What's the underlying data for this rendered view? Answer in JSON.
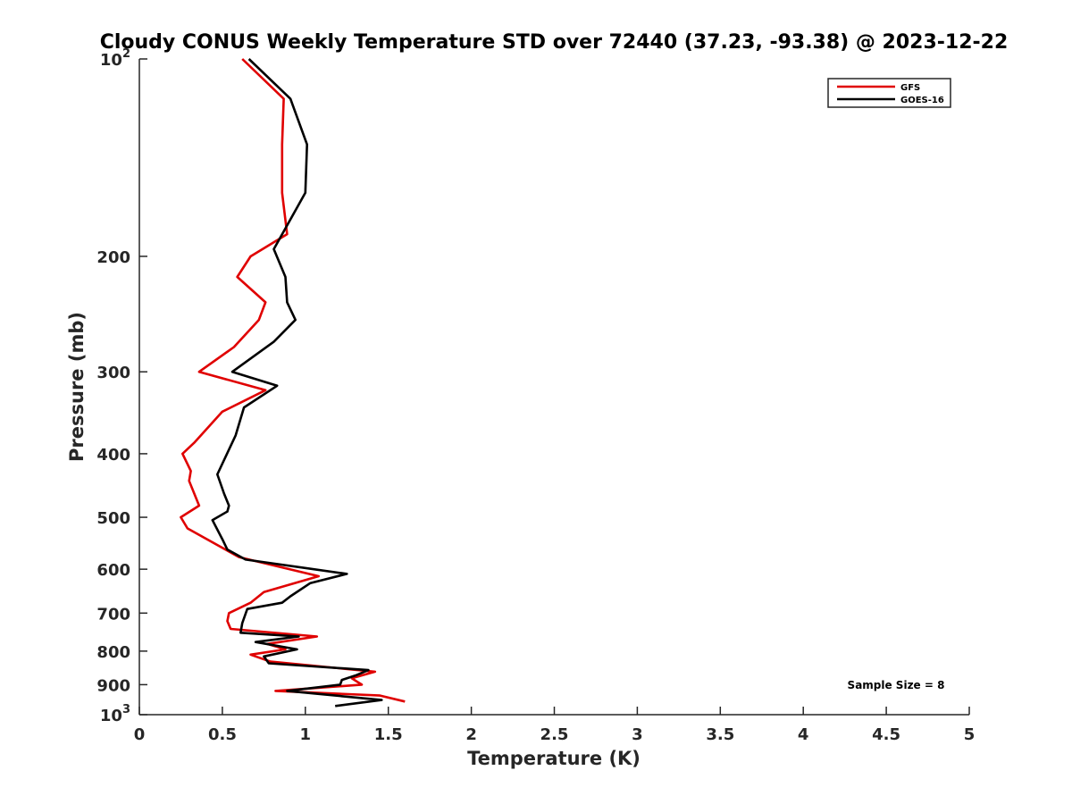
{
  "chart_data": {
    "type": "line",
    "title": "Cloudy CONUS Weekly Temperature STD over 72440 (37.23, -93.38) @ 2023-12-22",
    "xlabel": "Temperature (K)",
    "ylabel": "Pressure (mb)",
    "xlim": [
      0,
      5
    ],
    "ylim": [
      100,
      1000
    ],
    "y_scale": "log",
    "y_reversed": true,
    "grid": false,
    "legend_position": "top-right",
    "x_ticks": [
      "0",
      "0.5",
      "1",
      "1.5",
      "2",
      "2.5",
      "3",
      "3.5",
      "4",
      "4.5",
      "5"
    ],
    "y_ticks": [
      {
        "value": 100,
        "base": "10",
        "exp": "2"
      },
      {
        "value": 200,
        "label": "200"
      },
      {
        "value": 300,
        "label": "300"
      },
      {
        "value": 400,
        "label": "400"
      },
      {
        "value": 500,
        "label": "500"
      },
      {
        "value": 600,
        "label": "600"
      },
      {
        "value": 700,
        "label": "700"
      },
      {
        "value": 800,
        "label": "800"
      },
      {
        "value": 900,
        "label": "900"
      },
      {
        "value": 1000,
        "base": "10",
        "exp": "3"
      }
    ],
    "annotation": "Sample Size = 8",
    "series": [
      {
        "name": "GFS",
        "color": "#e00000",
        "points": [
          [
            0.62,
            100
          ],
          [
            0.87,
            115
          ],
          [
            0.86,
            135
          ],
          [
            0.86,
            160
          ],
          [
            0.89,
            185
          ],
          [
            0.67,
            200
          ],
          [
            0.59,
            215
          ],
          [
            0.76,
            235
          ],
          [
            0.72,
            250
          ],
          [
            0.57,
            275
          ],
          [
            0.36,
            300
          ],
          [
            0.76,
            320
          ],
          [
            0.5,
            345
          ],
          [
            0.33,
            385
          ],
          [
            0.26,
            400
          ],
          [
            0.31,
            425
          ],
          [
            0.3,
            440
          ],
          [
            0.36,
            480
          ],
          [
            0.25,
            500
          ],
          [
            0.29,
            520
          ],
          [
            0.6,
            575
          ],
          [
            1.08,
            615
          ],
          [
            0.75,
            650
          ],
          [
            0.67,
            675
          ],
          [
            0.54,
            700
          ],
          [
            0.53,
            720
          ],
          [
            0.55,
            740
          ],
          [
            1.07,
            760
          ],
          [
            0.77,
            780
          ],
          [
            0.88,
            795
          ],
          [
            0.67,
            810
          ],
          [
            0.79,
            830
          ],
          [
            1.42,
            860
          ],
          [
            1.28,
            880
          ],
          [
            1.34,
            900
          ],
          [
            0.82,
            920
          ],
          [
            1.45,
            935
          ],
          [
            1.6,
            955
          ]
        ]
      },
      {
        "name": "GOES-16",
        "color": "#000000",
        "points": [
          [
            0.66,
            100
          ],
          [
            0.91,
            115
          ],
          [
            1.01,
            135
          ],
          [
            1.0,
            160
          ],
          [
            0.81,
            195
          ],
          [
            0.88,
            215
          ],
          [
            0.89,
            235
          ],
          [
            0.94,
            250
          ],
          [
            0.81,
            270
          ],
          [
            0.56,
            300
          ],
          [
            0.83,
            315
          ],
          [
            0.63,
            340
          ],
          [
            0.58,
            375
          ],
          [
            0.47,
            430
          ],
          [
            0.51,
            460
          ],
          [
            0.54,
            480
          ],
          [
            0.53,
            490
          ],
          [
            0.44,
            505
          ],
          [
            0.5,
            540
          ],
          [
            0.53,
            560
          ],
          [
            0.64,
            580
          ],
          [
            1.25,
            610
          ],
          [
            1.03,
            630
          ],
          [
            0.91,
            660
          ],
          [
            0.86,
            675
          ],
          [
            0.65,
            690
          ],
          [
            0.62,
            725
          ],
          [
            0.61,
            750
          ],
          [
            0.96,
            760
          ],
          [
            0.7,
            775
          ],
          [
            0.95,
            795
          ],
          [
            0.75,
            815
          ],
          [
            0.78,
            835
          ],
          [
            1.38,
            855
          ],
          [
            1.31,
            870
          ],
          [
            1.22,
            885
          ],
          [
            1.21,
            900
          ],
          [
            0.89,
            920
          ],
          [
            1.46,
            950
          ],
          [
            1.18,
            970
          ]
        ]
      }
    ]
  }
}
